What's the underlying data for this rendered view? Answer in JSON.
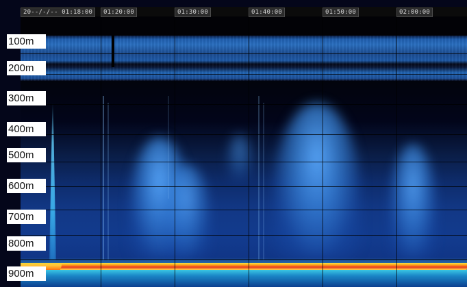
{
  "time_axis": {
    "labels": [
      "20--/-/-- 01:18:00",
      "01:20:00",
      "01:30:00",
      "01:40:00",
      "01:50:00",
      "02:00:00"
    ]
  },
  "depth_axis": {
    "labels": [
      "100m",
      "200m",
      "300m",
      "400m",
      "500m",
      "600m",
      "700m",
      "800m",
      "900m"
    ]
  },
  "colors": {
    "background": "#04061a",
    "scatter_blue": "#2a6fc0",
    "seabed_red": "#e83b1e",
    "seabed_yellow": "#f5e040",
    "label_bg": "#ffffff"
  }
}
